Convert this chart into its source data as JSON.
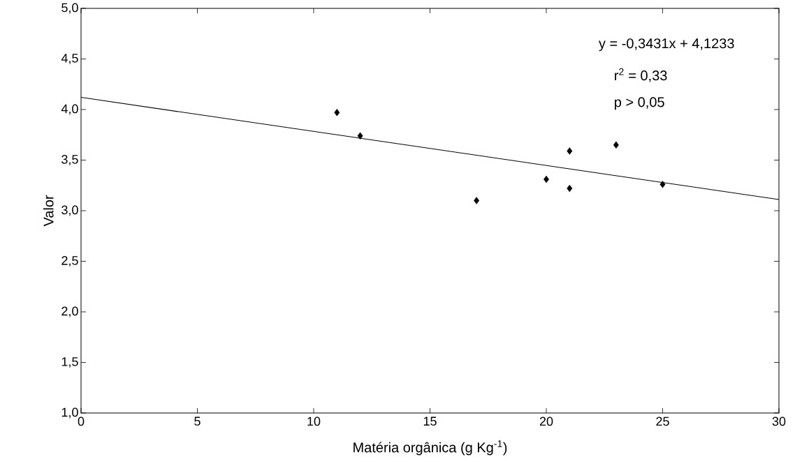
{
  "chart_data": {
    "type": "scatter",
    "xlabel": "Matéria orgânica (g Kg$^{-1}$)",
    "ylabel": "Valor",
    "annotations": [
      "y = -0,3431x + 4,1233",
      "r$^{2}$ = 0,33",
      "p > 0,05"
    ],
    "xlim": [
      0,
      30
    ],
    "xticks": [
      0,
      5,
      10,
      15,
      20,
      25,
      30
    ],
    "ylim": [
      1,
      5
    ],
    "yticks": [
      {
        "value": 1,
        "label": "1,0"
      },
      {
        "value": 1.5,
        "label": "1,5"
      },
      {
        "value": 2,
        "label": "2,0"
      },
      {
        "value": 2.5,
        "label": "2,5"
      },
      {
        "value": 3,
        "label": "3,0"
      },
      {
        "value": 3.5,
        "label": "3,5"
      },
      {
        "value": 4,
        "label": "4,0"
      },
      {
        "value": 4.5,
        "label": "4,5"
      },
      {
        "value": 5,
        "label": "5,0"
      }
    ],
    "grid": false,
    "series": [
      {
        "marker": "diamond",
        "color": "#000000",
        "x": [
          11,
          12,
          17,
          20,
          21,
          21,
          23,
          25
        ],
        "values": [
          3.97,
          3.74,
          3.1,
          3.31,
          3.59,
          3.22,
          3.65,
          3.26
        ]
      },
      {
        "type": "line",
        "color": "#000000",
        "line_style": "solid",
        "x": [
          0,
          30
        ],
        "values": [
          4.12,
          3.11
        ]
      }
    ]
  }
}
